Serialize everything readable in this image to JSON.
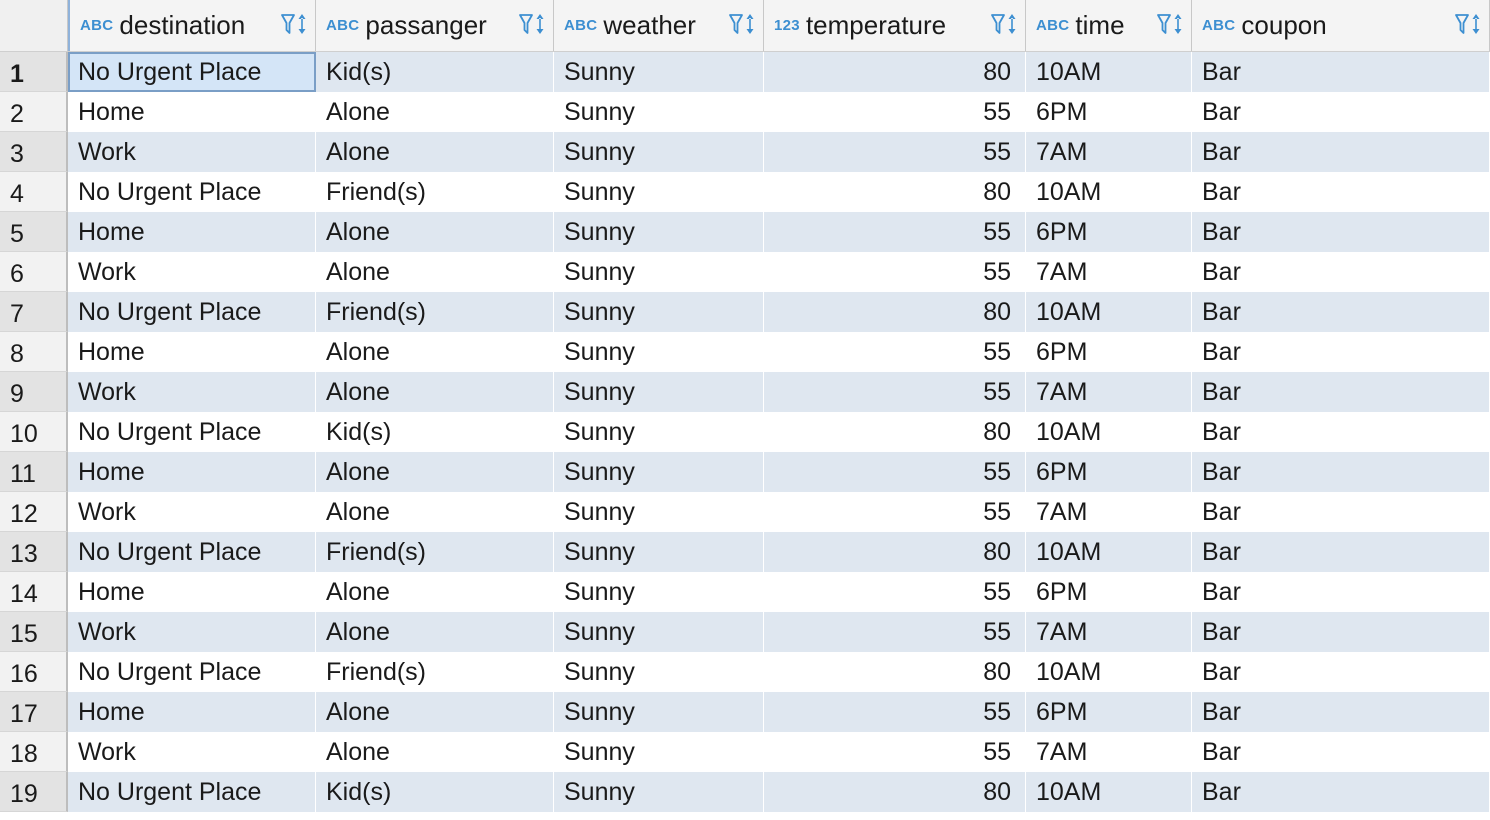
{
  "columns": [
    {
      "type_badge": "ABC",
      "title": "destination",
      "filter_icon": "filter-icon",
      "sort_icon": "sort-icon"
    },
    {
      "type_badge": "ABC",
      "title": "passanger",
      "filter_icon": "filter-icon",
      "sort_icon": "sort-icon"
    },
    {
      "type_badge": "ABC",
      "title": "weather",
      "filter_icon": "filter-icon",
      "sort_icon": "sort-icon"
    },
    {
      "type_badge": "123",
      "title": "temperature",
      "filter_icon": "filter-icon",
      "sort_icon": "sort-icon"
    },
    {
      "type_badge": "ABC",
      "title": "time",
      "filter_icon": "filter-icon",
      "sort_icon": "sort-icon"
    },
    {
      "type_badge": "ABC",
      "title": "coupon",
      "filter_icon": "filter-icon",
      "sort_icon": "sort-icon"
    }
  ],
  "rows": [
    {
      "n": "1",
      "cells": [
        "No Urgent Place",
        "Kid(s)",
        "Sunny",
        "80",
        "10AM",
        "Bar"
      ]
    },
    {
      "n": "2",
      "cells": [
        "Home",
        "Alone",
        "Sunny",
        "55",
        "6PM",
        "Bar"
      ]
    },
    {
      "n": "3",
      "cells": [
        "Work",
        "Alone",
        "Sunny",
        "55",
        "7AM",
        "Bar"
      ]
    },
    {
      "n": "4",
      "cells": [
        "No Urgent Place",
        "Friend(s)",
        "Sunny",
        "80",
        "10AM",
        "Bar"
      ]
    },
    {
      "n": "5",
      "cells": [
        "Home",
        "Alone",
        "Sunny",
        "55",
        "6PM",
        "Bar"
      ]
    },
    {
      "n": "6",
      "cells": [
        "Work",
        "Alone",
        "Sunny",
        "55",
        "7AM",
        "Bar"
      ]
    },
    {
      "n": "7",
      "cells": [
        "No Urgent Place",
        "Friend(s)",
        "Sunny",
        "80",
        "10AM",
        "Bar"
      ]
    },
    {
      "n": "8",
      "cells": [
        "Home",
        "Alone",
        "Sunny",
        "55",
        "6PM",
        "Bar"
      ]
    },
    {
      "n": "9",
      "cells": [
        "Work",
        "Alone",
        "Sunny",
        "55",
        "7AM",
        "Bar"
      ]
    },
    {
      "n": "10",
      "cells": [
        "No Urgent Place",
        "Kid(s)",
        "Sunny",
        "80",
        "10AM",
        "Bar"
      ]
    },
    {
      "n": "11",
      "cells": [
        "Home",
        "Alone",
        "Sunny",
        "55",
        "6PM",
        "Bar"
      ]
    },
    {
      "n": "12",
      "cells": [
        "Work",
        "Alone",
        "Sunny",
        "55",
        "7AM",
        "Bar"
      ]
    },
    {
      "n": "13",
      "cells": [
        "No Urgent Place",
        "Friend(s)",
        "Sunny",
        "80",
        "10AM",
        "Bar"
      ]
    },
    {
      "n": "14",
      "cells": [
        "Home",
        "Alone",
        "Sunny",
        "55",
        "6PM",
        "Bar"
      ]
    },
    {
      "n": "15",
      "cells": [
        "Work",
        "Alone",
        "Sunny",
        "55",
        "7AM",
        "Bar"
      ]
    },
    {
      "n": "16",
      "cells": [
        "No Urgent Place",
        "Friend(s)",
        "Sunny",
        "80",
        "10AM",
        "Bar"
      ]
    },
    {
      "n": "17",
      "cells": [
        "Home",
        "Alone",
        "Sunny",
        "55",
        "6PM",
        "Bar"
      ]
    },
    {
      "n": "18",
      "cells": [
        "Work",
        "Alone",
        "Sunny",
        "55",
        "7AM",
        "Bar"
      ]
    },
    {
      "n": "19",
      "cells": [
        "No Urgent Place",
        "Kid(s)",
        "Sunny",
        "80",
        "10AM",
        "Bar"
      ]
    }
  ],
  "selection": {
    "row": "1",
    "column": "destination"
  },
  "colors": {
    "accent": "#3d8fd1",
    "stripe": "#dfe7f0",
    "selected": "#d4e5f7"
  }
}
